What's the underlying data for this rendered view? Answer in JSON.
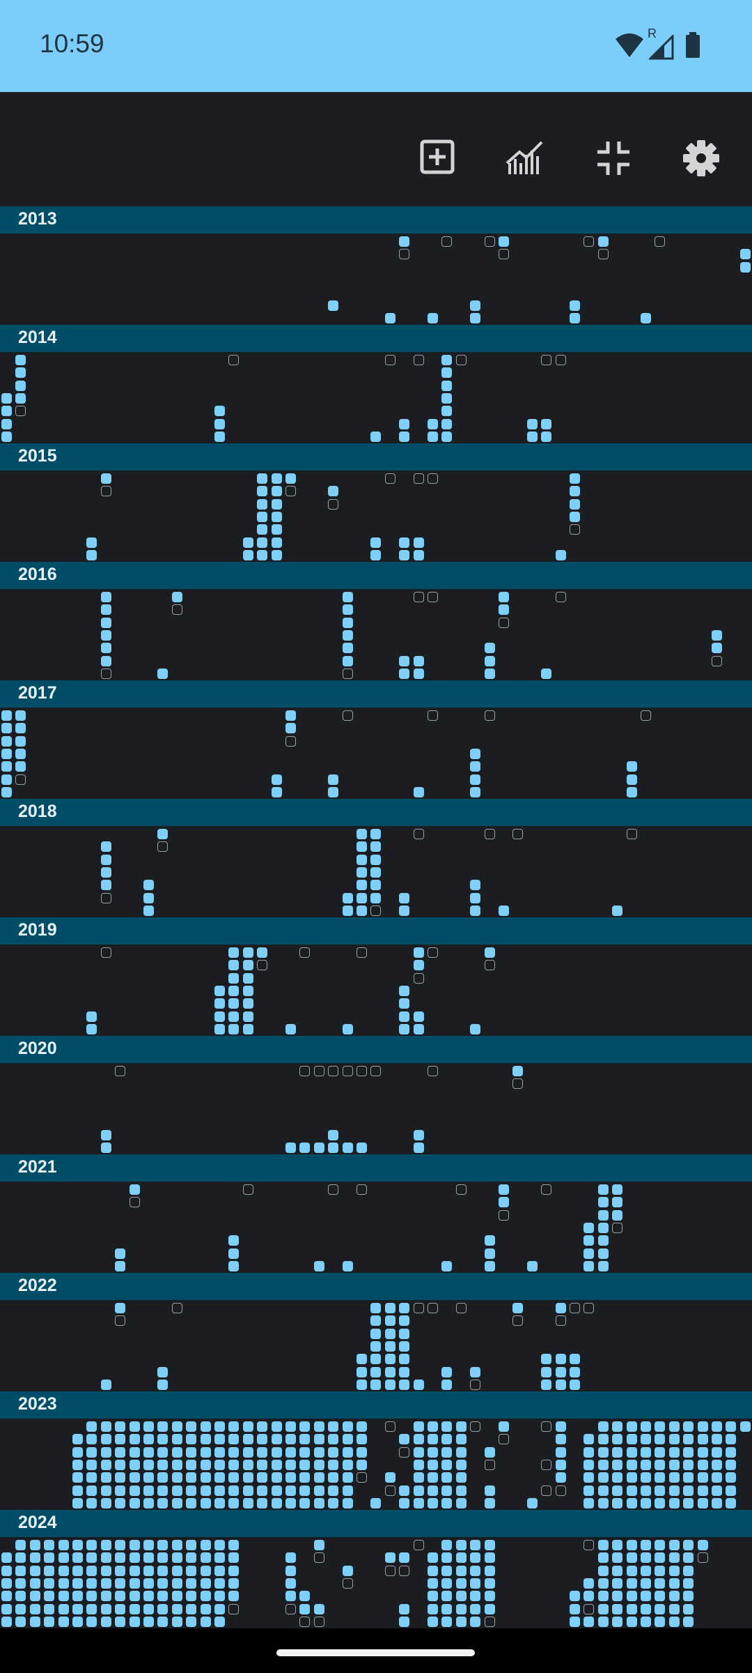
{
  "status_bar": {
    "time": "10:59",
    "wifi_icon": "wifi-icon",
    "signal_icon": "signal-icon",
    "roaming_letter": "R",
    "battery_icon": "battery-icon",
    "background_color": "#7dcdfa"
  },
  "toolbar": {
    "buttons": [
      {
        "name": "add-entry-button",
        "icon": "add-box-icon"
      },
      {
        "name": "statistics-button",
        "icon": "chart-icon"
      },
      {
        "name": "collapse-button",
        "icon": "fullscreen-exit-icon"
      },
      {
        "name": "settings-button",
        "icon": "gear-icon"
      }
    ]
  },
  "colors": {
    "background": "#1b1d20",
    "year_band": "#004d68",
    "filled_cell": "#7fd0f8",
    "outlined_cell": "#9aa3aa"
  },
  "years": [
    {
      "label": "2013",
      "cells": "c28r0f c28r1o c31r0o c34r0o c35r0f c35r1o c41r0o c42r0f c42r1o c46r0o c52r1f c52r2f c23r5f c27r6f c30r6f c33r5f c33r6f c40r5f c40r6f c45r6f"
    },
    {
      "label": "2014",
      "cells": "c1r0f c1r1f c1r2f c1r3f c0r3f c1r4o c0r4f c0r5f c0r6f c16r0o c27r0o c29r0o c31r0f c32r0o c31r1f c31r2f c31r3f c31r4f c31r5f c31r6f c30r5f c30r6f c28r5f c28r6f c26r6f c15r4f c15r5f c15r6f c38r0o c39r0o c37r5f c37r6f c38r5f c38r6f"
    },
    {
      "label": "2015",
      "cells": "c7r0f c7r1o c18r0f c19r0f c20r0f c18r1f c19r1f c20r1o c18r2f c19r2f c18r3f c19r3f c18r4f c19r4f c18r5f c19r5f c17r5f c18r6f c19r6f c17r6f c23r1f c23r2o c27r0o c29r0o c30r0o c6r5f c6r6f c26r5f c26r6f c28r5f c28r6f c29r5f c29r6f c40r0f c40r1f c40r2f c40r3f c40r4o c39r6f"
    },
    {
      "label": "2016",
      "cells": "c7r0f c7r1f c7r2f c7r3f c7r4f c7r5f c7r6o c12r0f c12r1o c11r6f c24r0f c24r1f c24r2f c24r3f c24r4f c24r5f c24r6o c29r0o c30r0o c28r5f c29r5f c28r6f c29r6f c35r0f c35r1f c35r2o c34r4f c34r5f c34r6f c39r0o c38r6f c50r3f c50r4f c50r5o"
    },
    {
      "label": "2017",
      "cells": "c0r0f c1r0f c0r1f c1r1f c0r2f c1r2f c0r3f c1r3f c0r4f c1r4f c0r5f c1r5o c0r6f c20r0f c20r1f c20r2o c24r0o c30r0o c34r0o c45r0o c33r3f c33r4f c33r5f c33r6f c44r4f c44r5f c44r6f c19r5f c19r6f c23r5f c23r6f c29r6f"
    },
    {
      "label": "2018",
      "cells": "c11r0f c11r1o c7r1f c7r2f c7r3f c7r4f c7r5o c10r4f c10r5f c10r6f c25r0f c26r0f c25r1f c26r1f c25r2f c26r2f c25r3f c26r3f c25r4f c26r4f c24r5f c25r5f c26r5f c24r6f c25r6f c26r6o c29r0o c34r0o c36r0o c44r0o c28r5f c28r6f c33r4f c33r5f c33r6f c35r6f c43r6f"
    },
    {
      "label": "2019",
      "cells": "c7r0o c16r0f c17r0f c18r0f c16r1f c17r1f c18r1o c16r2f c17r2f c15r3f c16r3f c17r3f c15r4f c16r4f c17r4f c15r5f c16r5f c17r5f c15r6f c16r6f c17r6f c21r0o c25r0o c29r0f c30r0o c29r1f c29r2o c34r0f c34r1o c28r3f c28r4f c28r5f c29r5f c28r6f c29r6f c6r5f c6r6f c20r6f c24r6f c33r6f"
    },
    {
      "label": "2020",
      "cells": "c8r0o c21r0o c22r0o c23r0o c24r0o c25r0o c26r0o c30r0o c36r0f c36r1o c7r5f c7r6f c20r6f c21r6f c22r6f c23r5f c23r6f c24r6f c25r6f c29r5f c29r6f"
    },
    {
      "label": "2021",
      "cells": "c9r0f c9r1o c17r0o c23r0o c25r0o c32r0o c35r0f c35r1f c35r2o c38r0o c42r0f c43r0f c42r1f c43r1f c42r2f c43r2f c41r3f c42r3f c43r3o c41r4f c42r4f c41r5f c42r5f c41r6f c42r6f c34r4f c34r5f c34r6f c16r4f c16r5f c16r6f c8r5f c8r6f c22r6f c24r6f c31r6f c37r6f"
    },
    {
      "label": "2022",
      "cells": "c8r0f c8r1o c12r0o c26r0f c27r0f c28r0f c26r1f c27r1f c28r1f c26r2f c27r2f c28r2f c26r3f c27r3f c28r3f c25r4f c26r4f c27r4f c28r4f c25r5f c26r5f c27r5f c28r5f c25r6f c26r6f c27r6f c28r6f c29r0o c30r0o c32r0o c36r0f c36r1o c39r0f c40r0o c41r0o c39r1o c38r4f c39r4f c40r4f c38r5f c39r5f c40r5f c38r6f c39r6f c40r6f c7r6f c11r5f c11r6f c29r6f c31r5f c31r6f c33r5f c33r6o"
    },
    {
      "label": "2023",
      "cells": "c6r0f c7r0f c8r0f c9r0f c10r0f c11r0f c12r0f c13r0f c14r0f c15r0f c16r0f c17r0f c18r0f c19r0f c20r0f c21r0f c22r0f c23r0f c24r0f c25r0f c5r1f c6r1f c7r1f c8r1f c9r1f c10r1f c11r1f c12r1f c13r1f c14r1f c15r1f c16r1f c17r1f c18r1f c19r1f c20r1f c21r1f c22r1f c23r1f c24r1f c25r1f c5r2f c6r2f c7r2f c8r2f c9r2f c10r2f c11r2f c12r2f c13r2f c14r2f c15r2f c16r2f c17r2f c18r2f c19r2f c20r2f c21r2f c22r2f c23r2f c24r2f c25r2f c5r3f c6r3f c7r3f c8r3f c9r3f c10r3f c11r3f c12r3f c13r3f c14r3f c15r3f c16r3f c17r3f c18r3f c19r3f c20r3f c21r3f c22r3f c23r3f c24r3f c25r3f c5r4f c6r4f c7r4f c8r4f c9r4f c10r4f c11r4f c12r4f c13r4f c14r4f c15r4f c16r4f c17r4f c18r4f c19r4f c20r4f c21r4f c22r4f c23r4f c24r4f c25r4o c5r5f c6r5f c7r5f c8r5f c9r5f c10r5f c11r5f c12r5f c13r5f c14r5f c15r5f c16r5f c17r5f c18r5f c19r5f c20r5f c21r5f c22r5f c23r5f c24r5f c5r6f c6r6f c7r6f c8r6f c9r6f c10r6f c11r6f c12r6f c13r6f c14r6f c15r6f c16r6f c17r6f c18r6f c19r6f c20r6f c21r6f c22r6f c23r6f c24r6f c26r6f c27r0o c29r0f c30r0f c31r0f c32r0f c33r0o c28r1f c29r1f c30r1f c31r1f c32r1f c28r2o c29r2f c30r2f c31r2f c32r2f c29r3f c30r3f c31r3f c32r3f c27r4f c29r4f c30r4f c31r4f c32r4f c27r5o c28r5f c29r5f c30r5f c31r5f c32r5f c28r6f c29r6f c30r6f c31r6f c32r6f c35r0f c35r1o c34r2f c34r3o c34r5f c34r6f c38r0o c39r0f c39r1f c39r2f c38r3o c39r3f c39r4f c38r5o c39r5o c37r6f c42r0f c43r0f c44r0f c45r0f c46r0f c47r0f c48r0f c49r0f c50r0f c51r0f c52r0f c41r1f c42r1f c43r1f c44r1f c45r1f c46r1f c47r1f c48r1f c49r1f c50r1f c51r1f c41r2f c42r2f c43r2f c44r2f c45r2f c46r2f c47r2f c48r2f c49r2f c50r2f c51r2f c41r3f c42r3f c43r3f c44r3f c45r3f c46r3f c47r3f c48r3f c49r3f c50r3f c51r3f c41r4f c42r4f c43r4f c44r4f c45r4f c46r4f c47r4f c48r4f c49r4f c50r4f c51r4f c41r5f c42r5f c43r5f c44r5f c45r5f c46r5f c47r5f c48r5f c49r5f c50r5f c51r5f c41r6f c42r6f c43r6f c44r6f c45r6f c46r6f c47r6f c48r6f c49r6f c50r6f c51r6f"
    },
    {
      "label": "2024",
      "cells": "c1r0f c2r0f c3r0f c4r0f c5r0f c6r0f c7r0f c8r0f c9r0f c10r0f c11r0f c12r0f c13r0f c14r0f c15r0f c16r0f c0r1f c1r1f c2r1f c3r1f c4r1f c5r1f c6r1f c7r1f c8r1f c9r1f c10r1f c11r1f c12r1f c13r1f c14r1f c15r1f c16r1f c0r2f c1r2f c2r2f c3r2f c4r2f c5r2f c6r2f c7r2f c8r2f c9r2f c10r2f c11r2f c12r2f c13r2f c14r2f c15r2f c16r2f c0r3f c1r3f c2r3f c3r3f c4r3f c5r3f c6r3f c7r3f c8r3f c9r3f c10r3f c11r3f c12r3f c13r3f c14r3f c15r3f c16r3f c0r4f c1r4f c2r4f c3r4f c4r4f c5r4f c6r4f c7r4f c8r4f c9r4f c10r4f c11r4f c12r4f c13r4f c14r4f c15r4f c16r4f c0r5f c1r5f c2r5f c3r5f c4r5f c5r5f c6r5f c7r5f c8r5f c9r5f c10r5f c11r5f c12r5f c13r5f c14r5f c15r5f c16r5o c0r6f c1r6f c2r6f c3r6f c4r6f c5r6f c6r6f c7r6f c8r6f c9r6f c10r6f c11r6f c12r6f c13r6f c14r6f c15r6f c22r0f c22r1o c20r1f c20r2f c20r3f c20r4f c21r4f c20r5o c21r5f c22r5f c21r6o c22r6o c24r2f c24r3o c27r1f c28r1f c27r2o c28r2o c29r0o c28r5f c28r6f c31r0f c32r0f c33r0f c34r0f c30r1f c31r1f c32r1f c33r1f c34r1f c30r2f c31r2f c32r2f c33r2f c34r2f c30r3f c31r3f c32r3f c33r3f c34r3f c30r4f c31r4f c32r4f c33r4f c34r4f c30r5f c31r5f c32r5f c33r5f c34r5f c30r6f c31r6f c32r6f c33r6f c34r6o c41r0o c42r0f c43r0f c44r0f c45r0f c46r0f c47r0f c48r0f c49r0f c42r1f c43r1f c44r1f c45r1f c46r1f c47r1f c48r1f c49r1o c42r2f c43r2f c44r2f c45r2f c46r2f c47r2f c48r2f c41r3f c42r3f c43r3f c44r3f c45r3f c46r3f c47r3f c48r3f c40r4f c41r4f c42r4f c43r4f c44r4f c45r4f c46r4f c47r4f c48r4f c40r5f c41r5o c42r5f c43r5f c44r5f c45r5f c46r5f c47r5f c48r5f c40r6f c41r6f c42r6f c43r6f c44r6f c45r6f c46r6f c47r6f c48r6f"
    }
  ]
}
